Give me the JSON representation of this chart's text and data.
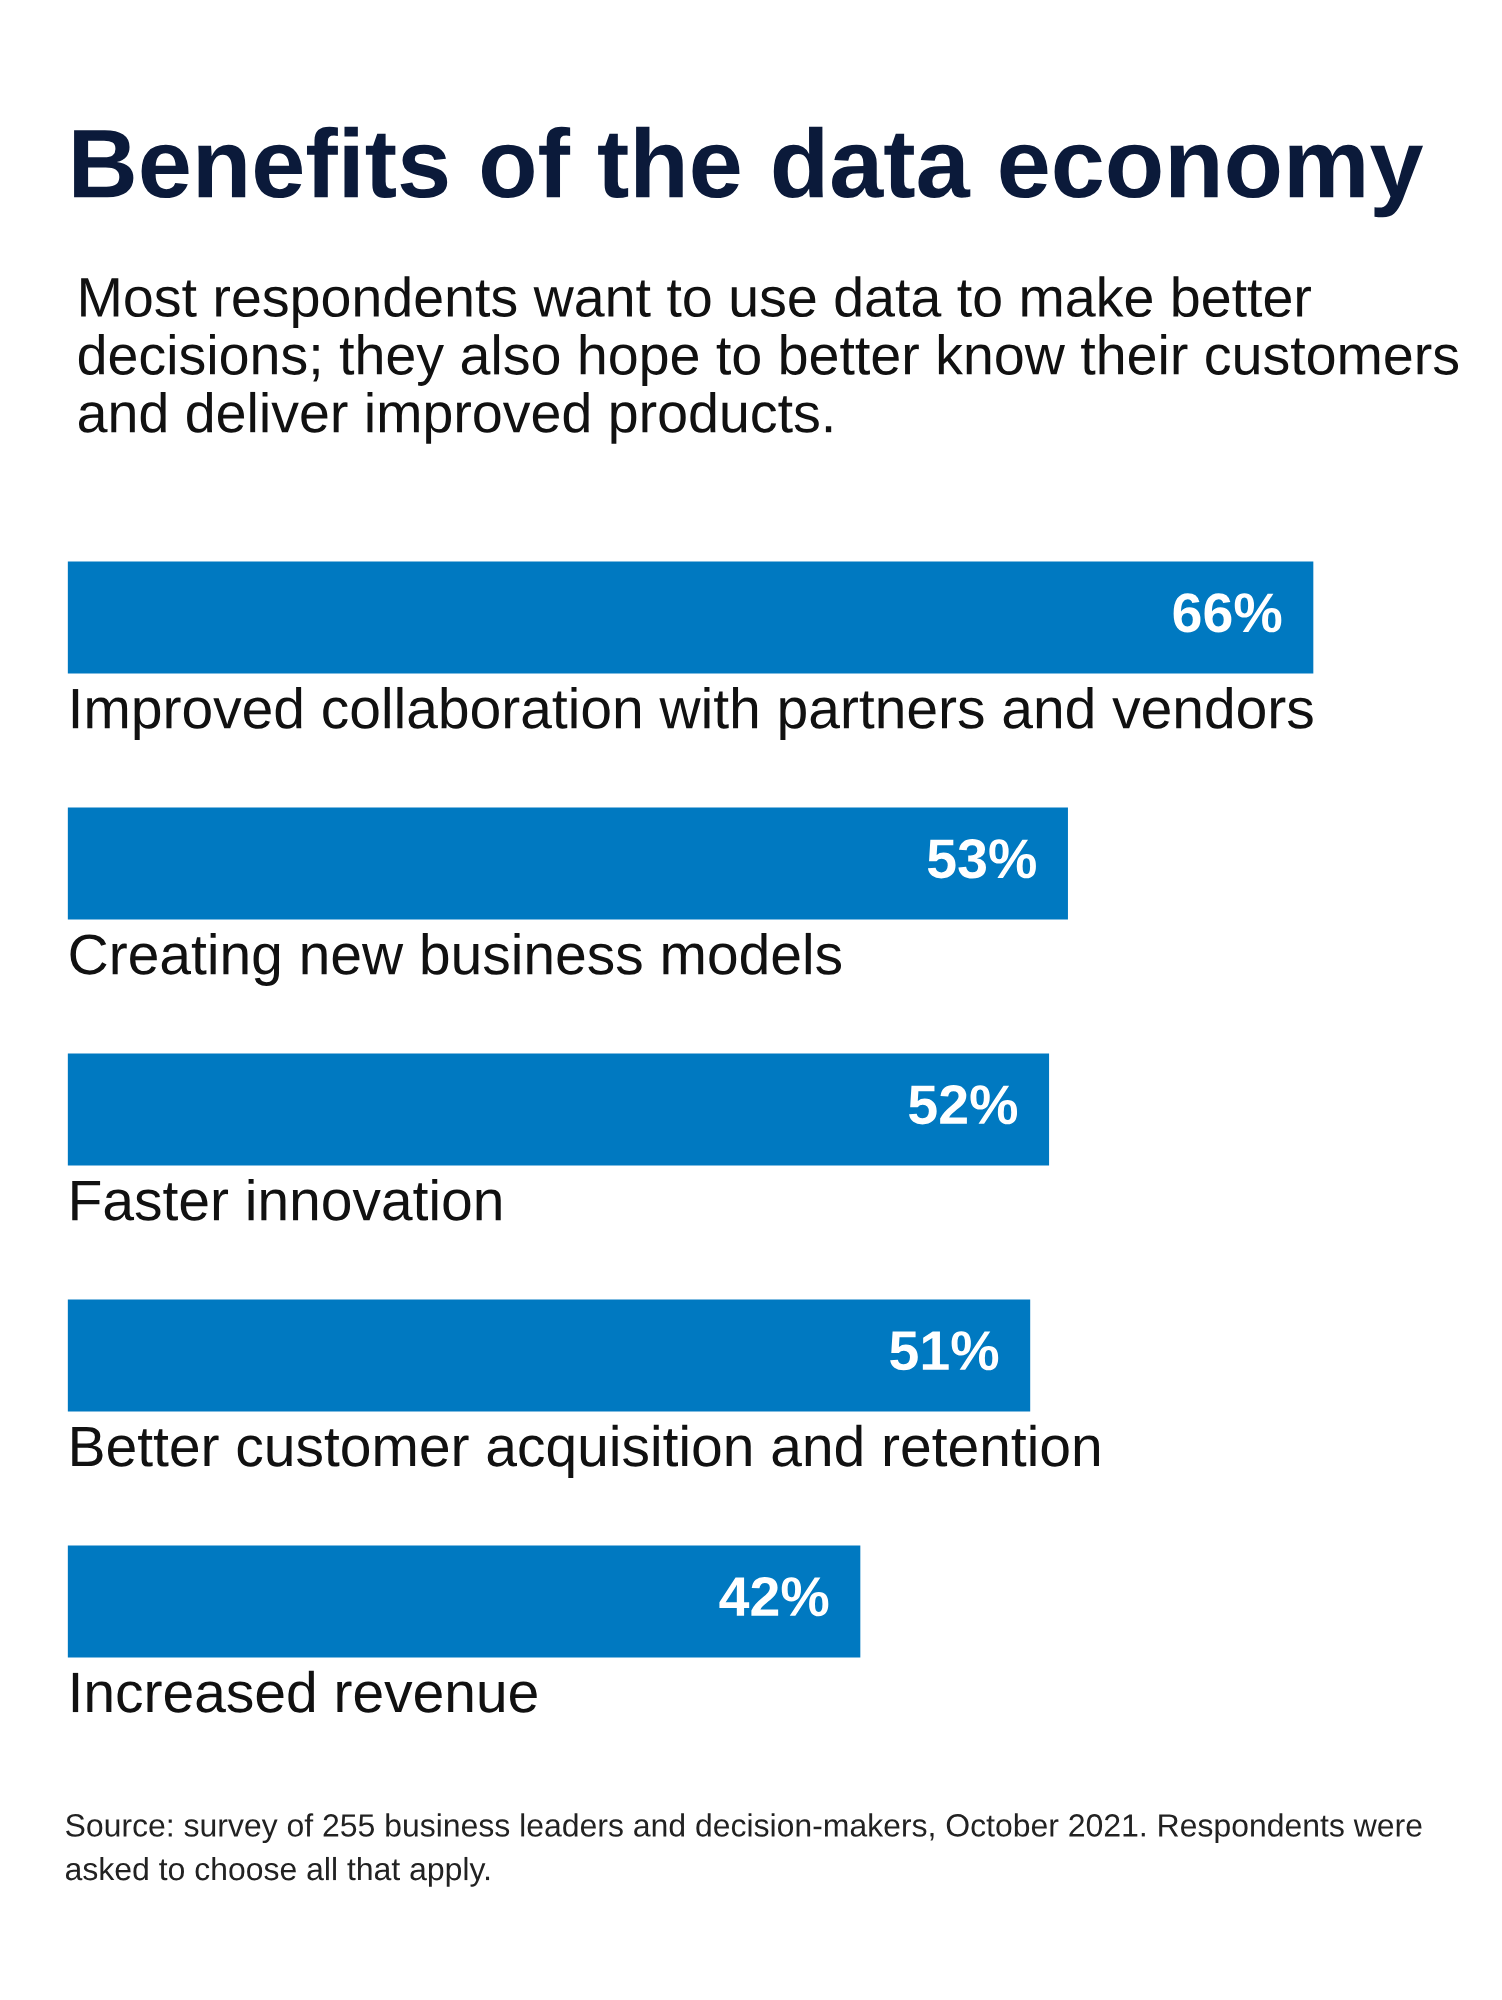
{
  "chart_data": {
    "type": "bar",
    "orientation": "horizontal",
    "title": "Benefits of the data economy",
    "subtitle": "Most respondents want to use data to make better decisions; they also hope to better know their customers and deliver improved products.",
    "categories": [
      "Improved collaboration with partners and vendors",
      "Creating new business models",
      "Faster innovation",
      "Better customer acquisition and retention",
      "Increased revenue"
    ],
    "values": [
      66,
      53,
      52,
      51,
      42
    ],
    "value_labels": [
      "66%",
      "53%",
      "52%",
      "51%",
      "42%"
    ],
    "color": "#0079c1",
    "annotations": [
      "Source: survey of 255 business leaders and decision-makers, October 2021. Respondents were asked to choose all that apply."
    ]
  }
}
